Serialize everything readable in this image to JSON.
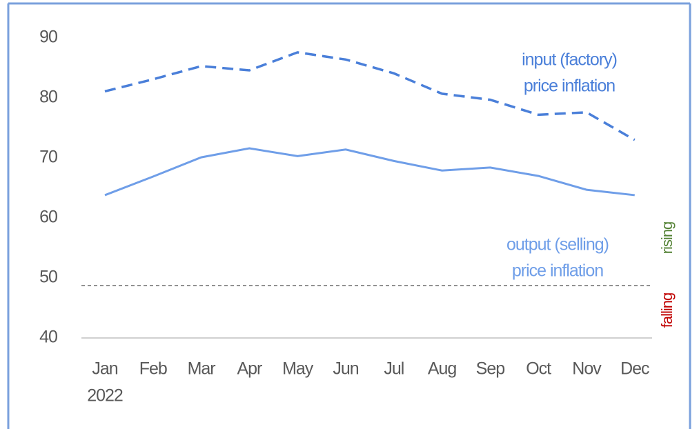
{
  "chart_data": {
    "type": "line",
    "categories": [
      "Jan",
      "Feb",
      "Mar",
      "Apr",
      "May",
      "Jun",
      "Jul",
      "Aug",
      "Sep",
      "Oct",
      "Nov",
      "Dec"
    ],
    "year_label": "2022",
    "series": [
      {
        "name": "input (factory) price inflation",
        "label_lines": [
          "input (factory)",
          "price inflation"
        ],
        "color": "#4a7fd9",
        "dash": true,
        "values": [
          81.1,
          83.1,
          85.3,
          84.6,
          87.6,
          86.4,
          84.1,
          80.7,
          79.7,
          77.2,
          77.6,
          73.0
        ]
      },
      {
        "name": "output (selling) price inflation",
        "label_lines": [
          "output (selling)",
          "price inflation"
        ],
        "color": "#6f9ee8",
        "dash": false,
        "values": [
          63.8,
          66.9,
          70.1,
          71.6,
          70.3,
          71.4,
          69.5,
          67.9,
          68.4,
          67.0,
          64.7,
          63.8
        ]
      }
    ],
    "reference_line": 48.7,
    "annotations": {
      "rising": "rising",
      "falling": "falling"
    },
    "ylim": [
      40,
      90
    ],
    "yticks": [
      40,
      50,
      60,
      70,
      80,
      90
    ],
    "grid": false
  }
}
